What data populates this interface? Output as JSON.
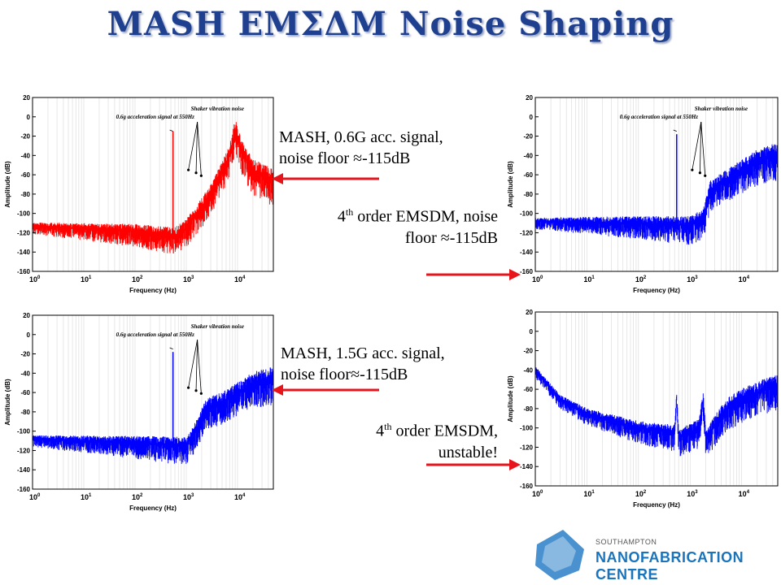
{
  "title": "MASH EMΣΔM Noise Shaping",
  "chart_data": [
    {
      "type": "line",
      "id": "tl",
      "color": "#ff0000",
      "xlabel": "Frequency (Hz)",
      "ylabel": "Amplitude (dB)",
      "xscale": "log",
      "xlim": [
        1,
        50000
      ],
      "ylim": [
        -160,
        20
      ],
      "yticks": [
        20,
        0,
        -20,
        -40,
        -60,
        -80,
        -100,
        -120,
        -140,
        -160
      ],
      "xticks": [
        "10^0",
        "10^1",
        "10^2",
        "10^3",
        "10^4"
      ],
      "annotations": [
        "0.6g acceleration signal at 550Hz",
        "Shaker vibration noise"
      ],
      "signal_tone": {
        "freq": 550,
        "level": -15
      },
      "noise_floor": [
        [
          1,
          -113
        ],
        [
          100,
          -118
        ],
        [
          600,
          -123
        ],
        [
          1000,
          -115
        ],
        [
          3000,
          -80
        ],
        [
          7000,
          -40
        ],
        [
          9000,
          -12
        ],
        [
          12000,
          -35
        ],
        [
          20000,
          -55
        ],
        [
          50000,
          -65
        ]
      ]
    },
    {
      "type": "line",
      "id": "tr",
      "color": "#0000ff",
      "xlabel": "Frequency (Hz)",
      "ylabel": "Amplitude (dB)",
      "xscale": "log",
      "xlim": [
        1,
        50000
      ],
      "ylim": [
        -160,
        20
      ],
      "yticks": [
        20,
        0,
        -20,
        -40,
        -60,
        -80,
        -100,
        -120,
        -140,
        -160
      ],
      "xticks": [
        "10^0",
        "10^1",
        "10^2",
        "10^3",
        "10^4"
      ],
      "annotations": [
        "0.6g acceleration signal at 550Hz",
        "Shaker vibration noise"
      ],
      "signal_tone": {
        "freq": 550,
        "level": -18
      },
      "noise_floor": [
        [
          1,
          -108
        ],
        [
          100,
          -110
        ],
        [
          1000,
          -112
        ],
        [
          1800,
          -105
        ],
        [
          2500,
          -75
        ],
        [
          5000,
          -65
        ],
        [
          10000,
          -55
        ],
        [
          20000,
          -45
        ],
        [
          50000,
          -38
        ]
      ]
    },
    {
      "type": "line",
      "id": "bl",
      "color": "#0000ff",
      "xlabel": "Frequency (Hz)",
      "ylabel": "Amplitude (dB)",
      "xscale": "log",
      "xlim": [
        1,
        50000
      ],
      "ylim": [
        -160,
        20
      ],
      "yticks": [
        20,
        0,
        -20,
        -40,
        -60,
        -80,
        -100,
        -120,
        -140,
        -160
      ],
      "xticks": [
        "10^0",
        "10^1",
        "10^2",
        "10^3",
        "10^4"
      ],
      "annotations": [
        "0.6g acceleration signal at 550Hz",
        "Shaker vibration noise"
      ],
      "signal_tone": {
        "freq": 550,
        "level": -18
      },
      "noise_floor": [
        [
          1,
          -108
        ],
        [
          100,
          -112
        ],
        [
          1000,
          -115
        ],
        [
          1500,
          -100
        ],
        [
          2500,
          -75
        ],
        [
          5000,
          -70
        ],
        [
          10000,
          -60
        ],
        [
          20000,
          -50
        ],
        [
          50000,
          -45
        ]
      ]
    },
    {
      "type": "line",
      "id": "br",
      "color": "#0000ff",
      "xlabel": "Frequency (Hz)",
      "ylabel": "Amplitude (dB)",
      "xscale": "log",
      "xlim": [
        1,
        50000
      ],
      "ylim": [
        -160,
        20
      ],
      "yticks": [
        20,
        0,
        -20,
        -40,
        -60,
        -80,
        -100,
        -120,
        -140,
        -160
      ],
      "xticks": [
        "10^0",
        "10^1",
        "10^2",
        "10^3",
        "10^4"
      ],
      "annotations": [],
      "noise_floor": [
        [
          1,
          -40
        ],
        [
          3,
          -70
        ],
        [
          10,
          -85
        ],
        [
          100,
          -100
        ],
        [
          500,
          -105
        ],
        [
          550,
          -70
        ],
        [
          600,
          -110
        ],
        [
          1500,
          -100
        ],
        [
          1800,
          -70
        ],
        [
          2000,
          -110
        ],
        [
          5000,
          -80
        ],
        [
          10000,
          -70
        ],
        [
          50000,
          -55
        ]
      ]
    }
  ],
  "captions": {
    "c1": {
      "line1": "MASH, 0.6G acc. signal,",
      "line2": "noise floor ≈-115dB"
    },
    "c2": {
      "num": "4",
      "sup": "th",
      "line1_rest": " order EMSDM, noise",
      "line2": "floor ≈-115dB"
    },
    "c3": {
      "line1": "MASH, 1.5G acc. signal,",
      "line2": "noise floor≈-115dB"
    },
    "c4": {
      "num": "4",
      "sup": "th",
      "line1_rest": " order EMSDM,",
      "line2": "unstable!"
    }
  },
  "logo": {
    "small": "SOUTHAMPTON",
    "big": "NANOFABRICATION CENTRE"
  },
  "colors": {
    "title": "#1f3f8f",
    "arrow": "#e8141b",
    "logo": "#1a74bb"
  }
}
